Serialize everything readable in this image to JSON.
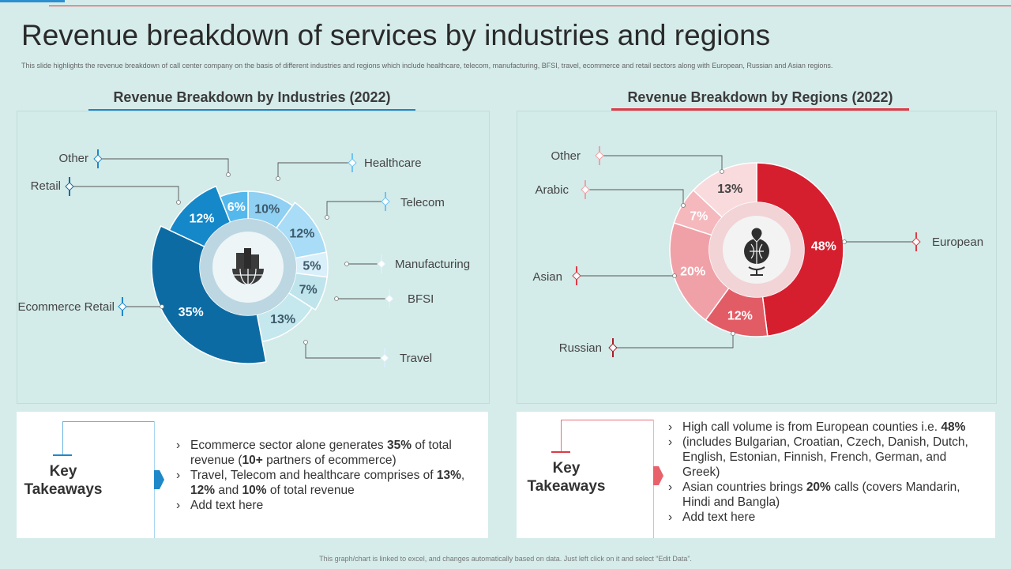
{
  "title": "Revenue breakdown of services by industries and regions",
  "subtitle": "This slide highlights the revenue breakdown of call center company on the basis of different industries and regions which include healthcare, telecom, manufacturing, BFSI,  travel, ecommerce and retail sectors along with European, Russian and Asian regions.",
  "colors": {
    "blue_accent": "#1e88c9",
    "red_accent": "#dc3b47",
    "background": "#d5ecea"
  },
  "chart_data": [
    {
      "type": "pie",
      "title": "Revenue Breakdown by Industries (2022)",
      "center_icon": "building-globe-icon",
      "categories": [
        "Healthcare",
        "Telecom",
        "Manufacturing",
        "BFSI",
        "Travel",
        "Ecommerce Retail",
        "Retail",
        "Other"
      ],
      "values": [
        10,
        12,
        5,
        7,
        13,
        35,
        12,
        6
      ],
      "labels": [
        "10%",
        "12%",
        "5%",
        "7%",
        "13%",
        "35%",
        "12%",
        "6%"
      ],
      "colors": [
        "#8fd0f3",
        "#a9dcf6",
        "#d9effa",
        "#bfe4ec",
        "#c4e8ee",
        "#0d6ba3",
        "#1588c9",
        "#55b8ec"
      ]
    },
    {
      "type": "pie",
      "title": "Revenue Breakdown by Regions (2022)",
      "center_icon": "globe-location-icon",
      "categories": [
        "European",
        "Russian",
        "Asian",
        "Arabic",
        "Other"
      ],
      "values": [
        48,
        12,
        20,
        7,
        13
      ],
      "labels": [
        "48%",
        "12%",
        "20%",
        "7%",
        "13%"
      ],
      "colors": [
        "#d51f2f",
        "#e25c66",
        "#f0a1a7",
        "#f4b8bd",
        "#f9dadd"
      ]
    }
  ],
  "key_takeaways_left": {
    "title": "Key Takeaways",
    "bullets": [
      [
        "Ecommerce sector alone generates ",
        "35%",
        " of total revenue  (",
        "10+",
        " partners of ecommerce)"
      ],
      [
        "Travel, Telecom and healthcare  comprises of ",
        "13%",
        ", ",
        "12%",
        " and ",
        "10%",
        " of total revenue"
      ],
      [
        "Add text here"
      ]
    ]
  },
  "key_takeaways_right": {
    "title": "Key Takeaways",
    "bullets": [
      [
        "High call volume  is from European counties  i.e. ",
        "48%"
      ],
      [
        "(includes Bulgarian,  Croatian,  Czech,  Danish,  Dutch,  English,  Estonian,  Finnish,  French,  German,  and Greek)"
      ],
      [
        "Asian countries brings ",
        "20%",
        " calls (covers Mandarin, Hindi and Bangla)"
      ],
      [
        "Add text here"
      ]
    ]
  },
  "footer": "This graph/chart is linked to excel, and changes automatically based on data. Just left click on it and select “Edit Data”."
}
